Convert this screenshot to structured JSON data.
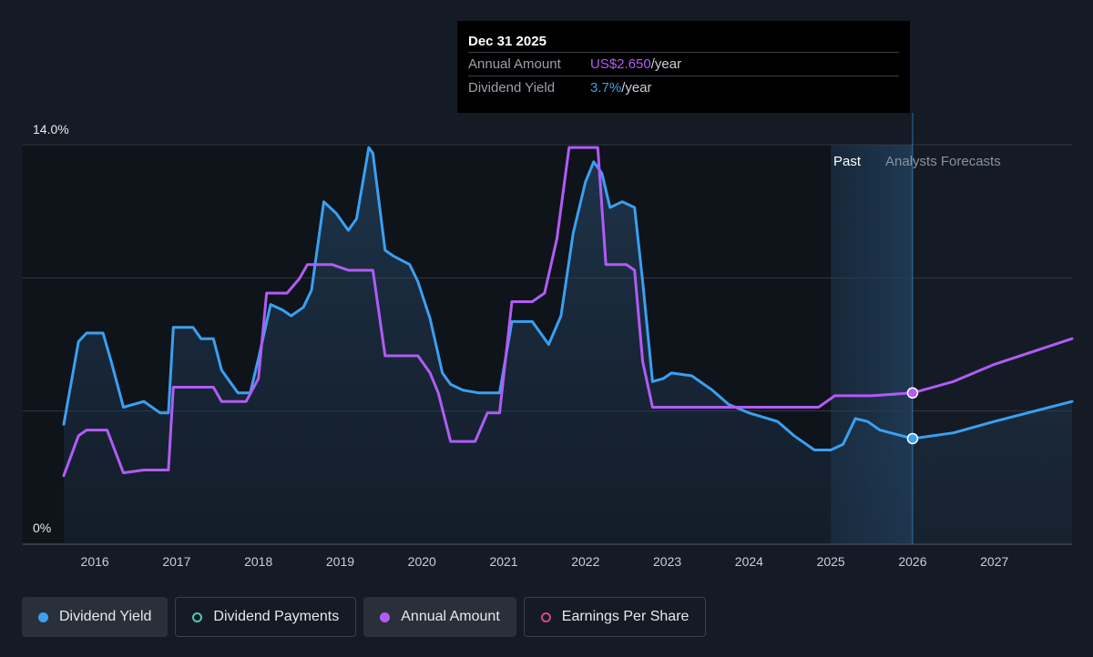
{
  "tooltip": {
    "date": "Dec 31 2025",
    "rows": [
      {
        "label": "Annual Amount",
        "value": "US$2.650",
        "unit": "/year"
      },
      {
        "label": "Dividend Yield",
        "value": "3.7%",
        "unit": "/year"
      }
    ]
  },
  "regions": {
    "past": "Past",
    "forecast": "Analysts Forecasts"
  },
  "legend": [
    {
      "label": "Dividend Yield",
      "color": "#3aa0f0",
      "style": "filled"
    },
    {
      "label": "Dividend Payments",
      "color": "#4ec9b0",
      "style": "outline"
    },
    {
      "label": "Annual Amount",
      "color": "#b05cf5",
      "style": "filled"
    },
    {
      "label": "Earnings Per Share",
      "color": "#d04a8a",
      "style": "outline"
    }
  ],
  "chart_data": {
    "type": "line",
    "y_tick_labels": [
      "14.0%",
      "0%"
    ],
    "ylim": [
      0,
      14
    ],
    "xlim": [
      2015.62,
      2027.95
    ],
    "x_tick_labels": [
      "2016",
      "2017",
      "2018",
      "2019",
      "2020",
      "2021",
      "2022",
      "2023",
      "2024",
      "2025",
      "2026",
      "2027"
    ],
    "grid": true,
    "legend_position": "bottom",
    "highlight_point": {
      "x": 2026.0,
      "yield": 3.7,
      "annual_amount_yield": 5.3
    },
    "past_region": [
      2025.0,
      2025.58
    ],
    "forecast_start": 2025.58,
    "series": [
      {
        "name": "Dividend Yield",
        "color": "#3aa0f0",
        "fill": true,
        "points": [
          [
            2015.62,
            4.2
          ],
          [
            2015.8,
            7.1
          ],
          [
            2015.9,
            7.4
          ],
          [
            2016.1,
            7.4
          ],
          [
            2016.2,
            6.4
          ],
          [
            2016.35,
            4.8
          ],
          [
            2016.6,
            5.0
          ],
          [
            2016.8,
            4.6
          ],
          [
            2016.9,
            4.6
          ],
          [
            2016.96,
            7.6
          ],
          [
            2017.2,
            7.6
          ],
          [
            2017.3,
            7.2
          ],
          [
            2017.45,
            7.2
          ],
          [
            2017.55,
            6.1
          ],
          [
            2017.75,
            5.3
          ],
          [
            2017.9,
            5.3
          ],
          [
            2018.0,
            6.5
          ],
          [
            2018.15,
            8.4
          ],
          [
            2018.3,
            8.2
          ],
          [
            2018.4,
            8.0
          ],
          [
            2018.55,
            8.3
          ],
          [
            2018.65,
            8.9
          ],
          [
            2018.8,
            12.0
          ],
          [
            2018.95,
            11.6
          ],
          [
            2019.1,
            11.0
          ],
          [
            2019.2,
            11.4
          ],
          [
            2019.35,
            13.9
          ],
          [
            2019.4,
            13.7
          ],
          [
            2019.55,
            10.3
          ],
          [
            2019.65,
            10.1
          ],
          [
            2019.85,
            9.8
          ],
          [
            2019.95,
            9.2
          ],
          [
            2020.1,
            7.9
          ],
          [
            2020.25,
            6.0
          ],
          [
            2020.35,
            5.6
          ],
          [
            2020.5,
            5.4
          ],
          [
            2020.7,
            5.3
          ],
          [
            2020.95,
            5.3
          ],
          [
            2021.1,
            7.8
          ],
          [
            2021.35,
            7.8
          ],
          [
            2021.55,
            7.0
          ],
          [
            2021.7,
            8.0
          ],
          [
            2021.85,
            10.9
          ],
          [
            2022.0,
            12.7
          ],
          [
            2022.1,
            13.4
          ],
          [
            2022.2,
            13.0
          ],
          [
            2022.3,
            11.8
          ],
          [
            2022.45,
            12.0
          ],
          [
            2022.6,
            11.8
          ],
          [
            2022.7,
            9.2
          ],
          [
            2022.82,
            5.7
          ],
          [
            2022.95,
            5.8
          ],
          [
            2023.05,
            6.0
          ],
          [
            2023.3,
            5.9
          ],
          [
            2023.55,
            5.4
          ],
          [
            2023.75,
            4.9
          ],
          [
            2024.0,
            4.6
          ],
          [
            2024.35,
            4.3
          ],
          [
            2024.55,
            3.8
          ],
          [
            2024.8,
            3.3
          ],
          [
            2025.0,
            3.3
          ],
          [
            2025.15,
            3.5
          ],
          [
            2025.3,
            4.4
          ],
          [
            2025.45,
            4.3
          ],
          [
            2025.6,
            4.0
          ],
          [
            2026.0,
            3.7
          ],
          [
            2026.5,
            3.9
          ],
          [
            2027.0,
            4.3
          ],
          [
            2027.95,
            5.0
          ]
        ]
      },
      {
        "name": "Annual Amount",
        "color": "#b05cf5",
        "fill": false,
        "points": [
          [
            2015.62,
            2.4
          ],
          [
            2015.8,
            3.8
          ],
          [
            2015.9,
            4.0
          ],
          [
            2016.15,
            4.0
          ],
          [
            2016.35,
            2.5
          ],
          [
            2016.6,
            2.6
          ],
          [
            2016.9,
            2.6
          ],
          [
            2016.96,
            5.5
          ],
          [
            2017.45,
            5.5
          ],
          [
            2017.55,
            5.0
          ],
          [
            2017.85,
            5.0
          ],
          [
            2018.0,
            5.8
          ],
          [
            2018.1,
            8.8
          ],
          [
            2018.35,
            8.8
          ],
          [
            2018.5,
            9.3
          ],
          [
            2018.6,
            9.8
          ],
          [
            2018.9,
            9.8
          ],
          [
            2019.1,
            9.6
          ],
          [
            2019.4,
            9.6
          ],
          [
            2019.55,
            6.6
          ],
          [
            2019.95,
            6.6
          ],
          [
            2020.1,
            6.0
          ],
          [
            2020.2,
            5.3
          ],
          [
            2020.35,
            3.6
          ],
          [
            2020.65,
            3.6
          ],
          [
            2020.8,
            4.6
          ],
          [
            2020.95,
            4.6
          ],
          [
            2021.1,
            8.5
          ],
          [
            2021.35,
            8.5
          ],
          [
            2021.5,
            8.8
          ],
          [
            2021.65,
            10.7
          ],
          [
            2021.8,
            13.9
          ],
          [
            2022.15,
            13.9
          ],
          [
            2022.25,
            9.8
          ],
          [
            2022.5,
            9.8
          ],
          [
            2022.6,
            9.6
          ],
          [
            2022.7,
            6.4
          ],
          [
            2022.82,
            4.8
          ],
          [
            2024.85,
            4.8
          ],
          [
            2025.05,
            5.2
          ],
          [
            2025.5,
            5.2
          ],
          [
            2026.0,
            5.3
          ],
          [
            2026.5,
            5.7
          ],
          [
            2027.0,
            6.3
          ],
          [
            2027.95,
            7.2
          ]
        ]
      }
    ]
  }
}
